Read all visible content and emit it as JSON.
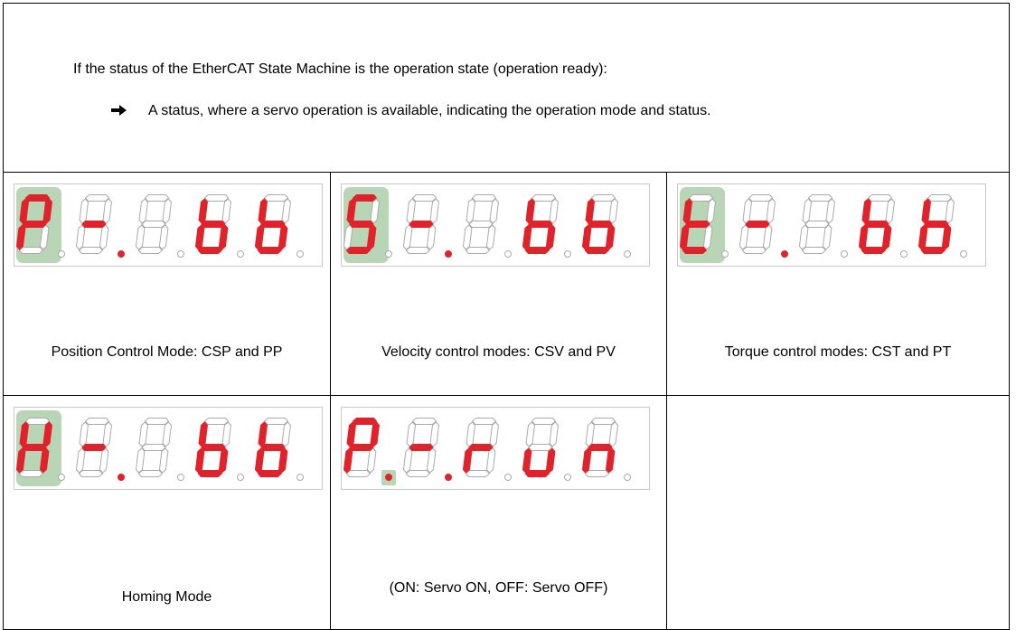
{
  "header": {
    "text": "If the status of the EtherCAT State Machine is the operation state (operation ready):",
    "bullet": "A status, where a servo operation is available, indicating the operation mode and status."
  },
  "cells": [
    {
      "caption": "Position Control Mode: CSP and PP"
    },
    {
      "caption": "Velocity control modes: CSV and PV"
    },
    {
      "caption": "Torque control modes: CST and PT"
    },
    {
      "caption": "Homing Mode"
    },
    {
      "caption": "(ON: Servo ON, OFF: Servo OFF)"
    }
  ]
}
